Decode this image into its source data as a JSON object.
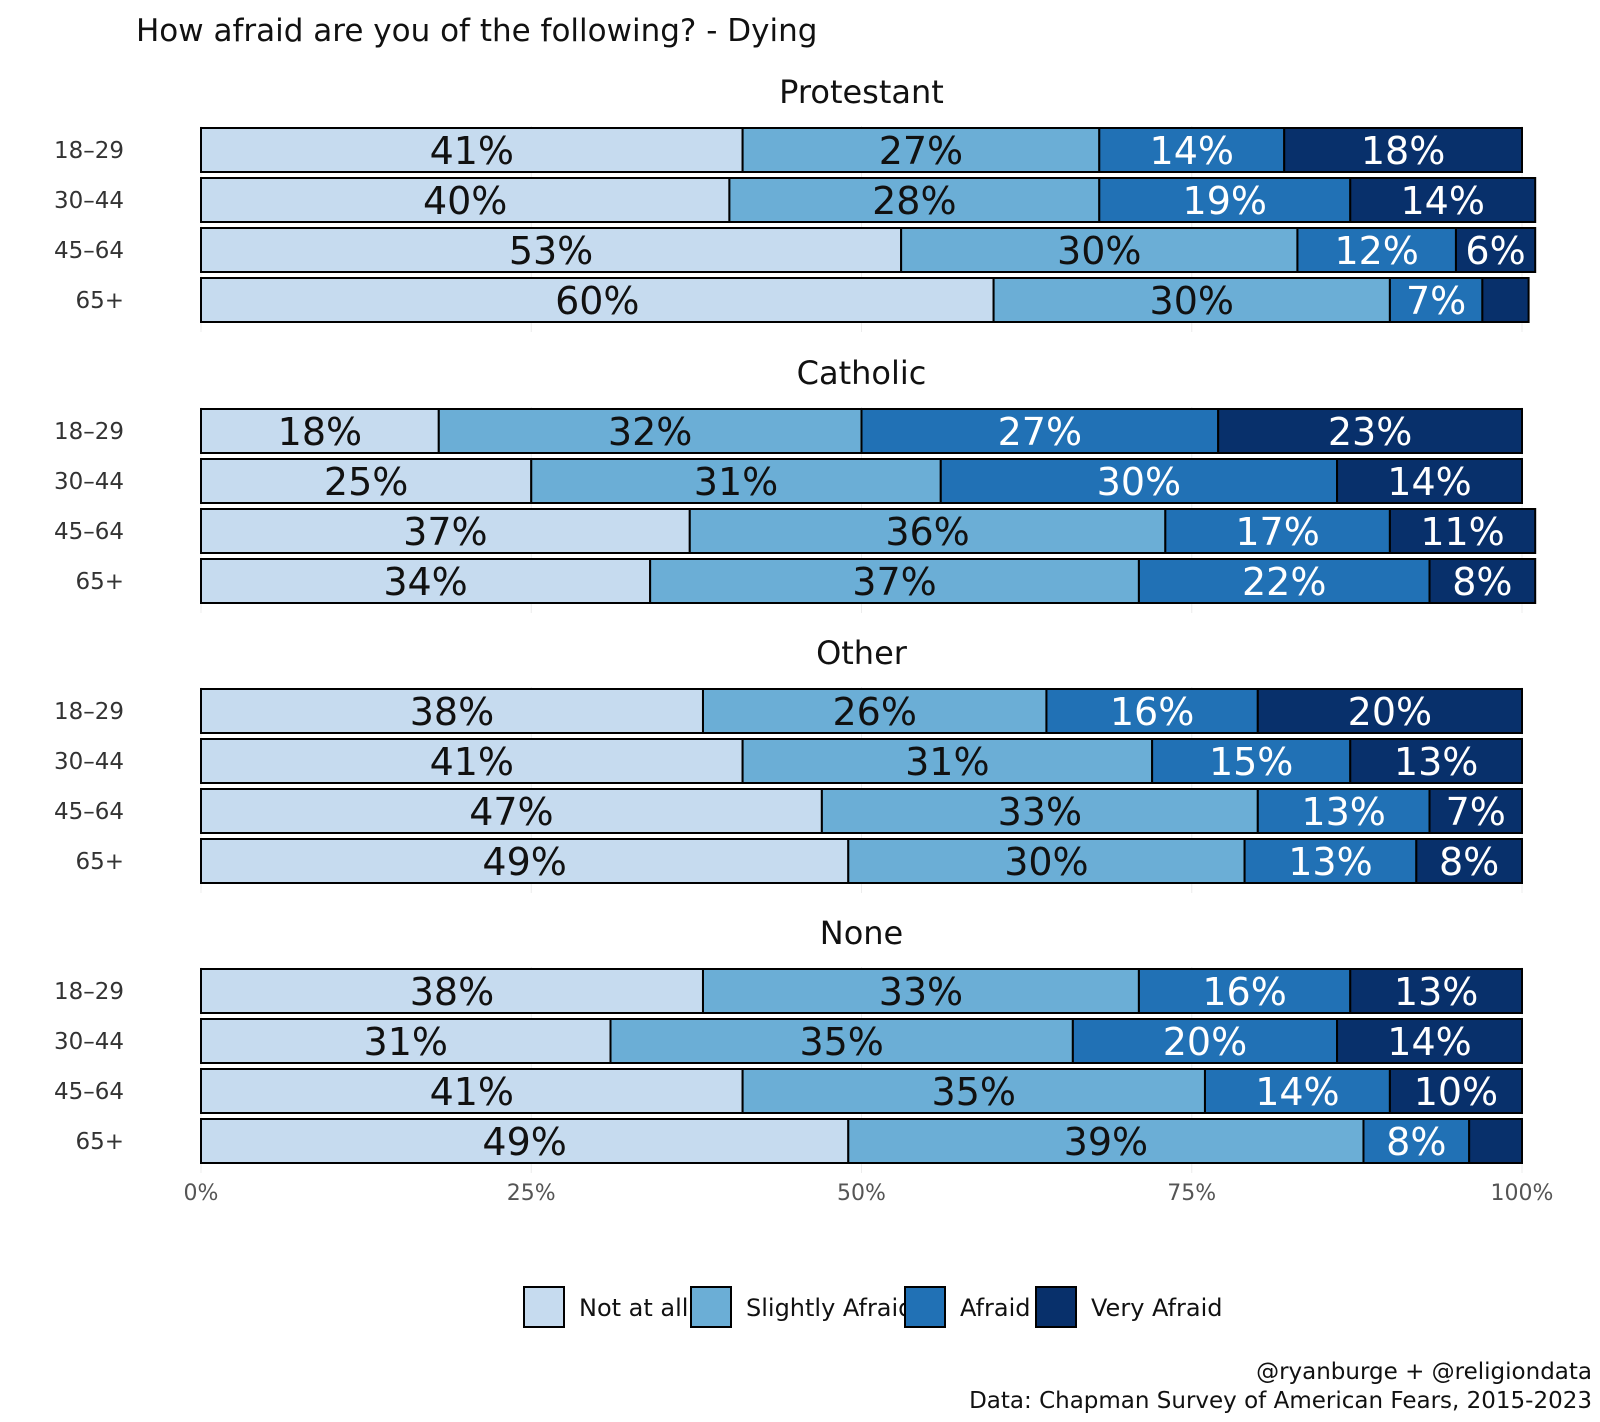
{
  "chart_data": {
    "type": "bar",
    "orientation": "horizontal",
    "stacked": true,
    "title": "How afraid are you of the following? - Dying",
    "categories": [
      "18–29",
      "30–44",
      "45–64",
      "65+"
    ],
    "xlim": [
      0,
      100
    ],
    "x_ticks": [
      "0%",
      "25%",
      "50%",
      "75%",
      "100%"
    ],
    "grid": true,
    "legend_position": "bottom",
    "series_names": [
      "Not at all",
      "Slightly Afraid",
      "Afraid",
      "Very Afraid"
    ],
    "colors": [
      "#c6dbef",
      "#6baed6",
      "#2171b5",
      "#08306b"
    ],
    "label_colors": [
      "#111111",
      "#111111",
      "#ffffff",
      "#ffffff"
    ],
    "panels": [
      {
        "name": "Protestant",
        "rows": [
          {
            "category": "18–29",
            "values": [
              41,
              27,
              14,
              18
            ],
            "labels": [
              "41%",
              "27%",
              "14%",
              "18%"
            ]
          },
          {
            "category": "30–44",
            "values": [
              40,
              28,
              19,
              14
            ],
            "labels": [
              "40%",
              "28%",
              "19%",
              "14%"
            ]
          },
          {
            "category": "45–64",
            "values": [
              53,
              30,
              12,
              6
            ],
            "labels": [
              "53%",
              "30%",
              "12%",
              "6%"
            ]
          },
          {
            "category": "65+",
            "values": [
              60,
              30,
              7,
              3.5
            ],
            "labels": [
              "60%",
              "30%",
              "7%",
              ""
            ]
          }
        ]
      },
      {
        "name": "Catholic",
        "rows": [
          {
            "category": "18–29",
            "values": [
              18,
              32,
              27,
              23
            ],
            "labels": [
              "18%",
              "32%",
              "27%",
              "23%"
            ]
          },
          {
            "category": "30–44",
            "values": [
              25,
              31,
              30,
              14
            ],
            "labels": [
              "25%",
              "31%",
              "30%",
              "14%"
            ]
          },
          {
            "category": "45–64",
            "values": [
              37,
              36,
              17,
              11
            ],
            "labels": [
              "37%",
              "36%",
              "17%",
              "11%"
            ]
          },
          {
            "category": "65+",
            "values": [
              34,
              37,
              22,
              8
            ],
            "labels": [
              "34%",
              "37%",
              "22%",
              "8%"
            ]
          }
        ]
      },
      {
        "name": "Other",
        "rows": [
          {
            "category": "18–29",
            "values": [
              38,
              26,
              16,
              20
            ],
            "labels": [
              "38%",
              "26%",
              "16%",
              "20%"
            ]
          },
          {
            "category": "30–44",
            "values": [
              41,
              31,
              15,
              13
            ],
            "labels": [
              "41%",
              "31%",
              "15%",
              "13%"
            ]
          },
          {
            "category": "45–64",
            "values": [
              47,
              33,
              13,
              7
            ],
            "labels": [
              "47%",
              "33%",
              "13%",
              "7%"
            ]
          },
          {
            "category": "65+",
            "values": [
              49,
              30,
              13,
              8
            ],
            "labels": [
              "49%",
              "30%",
              "13%",
              "8%"
            ]
          }
        ]
      },
      {
        "name": "None",
        "rows": [
          {
            "category": "18–29",
            "values": [
              38,
              33,
              16,
              13
            ],
            "labels": [
              "38%",
              "33%",
              "16%",
              "13%"
            ]
          },
          {
            "category": "30–44",
            "values": [
              31,
              35,
              20,
              14
            ],
            "labels": [
              "31%",
              "35%",
              "20%",
              "14%"
            ]
          },
          {
            "category": "45–64",
            "values": [
              41,
              35,
              14,
              10
            ],
            "labels": [
              "41%",
              "35%",
              "14%",
              "10%"
            ]
          },
          {
            "category": "65+",
            "values": [
              49,
              39,
              8,
              4
            ],
            "labels": [
              "49%",
              "39%",
              "8%",
              ""
            ]
          }
        ]
      }
    ],
    "caption": [
      "@ryanburge + @religiondata",
      "Data: Chapman Survey of American Fears, 2015-2023"
    ]
  }
}
